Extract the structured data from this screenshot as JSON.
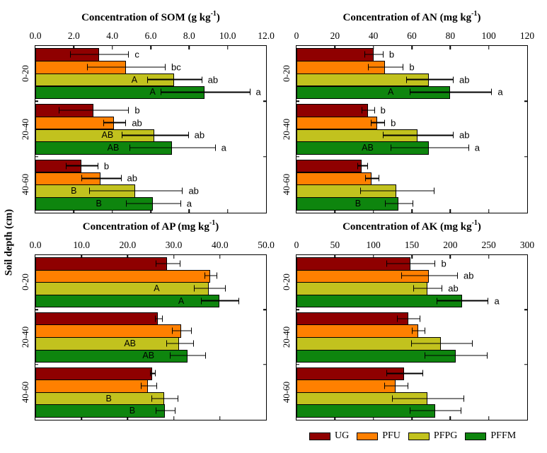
{
  "figure": {
    "shared_y_axis_label": "Soil depth (cm)",
    "depth_groups": [
      "0-20",
      "20-40",
      "40-60"
    ],
    "series": [
      "UG",
      "PFU",
      "PFPG",
      "PFFM"
    ],
    "colors": {
      "UG": "#8f0000",
      "PFU": "#ff8000",
      "PFPG": "#c2c21e",
      "PFFM": "#0e850e"
    }
  },
  "legend": {
    "items": [
      {
        "label": "UG",
        "color": "#8f0000"
      },
      {
        "label": "PFU",
        "color": "#ff8000"
      },
      {
        "label": "PFPG",
        "color": "#c2c21e"
      },
      {
        "label": "PFFM",
        "color": "#0e850e"
      }
    ]
  },
  "chart_data": [
    {
      "id": "som",
      "type": "bar",
      "orientation": "horizontal",
      "title": {
        "pre": "Concentration of SOM (g kg",
        "sup": "-1",
        "post": ")"
      },
      "x_ticks": [
        "0.0",
        "2.0",
        "4.0",
        "6.0",
        "8.0",
        "10.0",
        "12.0"
      ],
      "xmax": 12,
      "groups": [
        {
          "depth": "0-20",
          "bars": [
            {
              "series": "UG",
              "value": 3.3,
              "err": 1.5,
              "sig": "c"
            },
            {
              "series": "PFU",
              "value": 4.7,
              "err": 2.0,
              "sig": "bc"
            },
            {
              "series": "PFPG",
              "value": 7.2,
              "err": 1.4,
              "sig": "ab",
              "inside": "A",
              "inside_x": 5.15
            },
            {
              "series": "PFFM",
              "value": 8.8,
              "err": 2.3,
              "sig": "a",
              "inside": "A",
              "inside_x": 6.1
            }
          ]
        },
        {
          "depth": "20-40",
          "bars": [
            {
              "series": "UG",
              "value": 3.0,
              "err": 1.8,
              "sig": "b"
            },
            {
              "series": "PFU",
              "value": 4.1,
              "err": 0.55,
              "sig": "ab"
            },
            {
              "series": "PFPG",
              "value": 6.2,
              "err": 1.7,
              "sig": "ab",
              "inside": "AB",
              "inside_x": 3.75
            },
            {
              "series": "PFFM",
              "value": 7.1,
              "err": 2.2,
              "sig": "a",
              "inside": "AB",
              "inside_x": 4.05
            }
          ]
        },
        {
          "depth": "40-60",
          "bars": [
            {
              "series": "UG",
              "value": 2.4,
              "err": 0.8,
              "sig": "b"
            },
            {
              "series": "PFU",
              "value": 3.4,
              "err": 1.0,
              "sig": "ab"
            },
            {
              "series": "PFPG",
              "value": 5.2,
              "err": 2.4,
              "sig": "ab",
              "inside": "B",
              "inside_x": 2.0
            },
            {
              "series": "PFFM",
              "value": 6.1,
              "err": 1.4,
              "sig": "a",
              "inside": "B",
              "inside_x": 3.3
            }
          ]
        }
      ]
    },
    {
      "id": "an",
      "type": "bar",
      "orientation": "horizontal",
      "title": {
        "pre": "Concentration of AN (mg kg",
        "sup": "-1",
        "post": ")"
      },
      "x_ticks": [
        "0",
        "20",
        "40",
        "60",
        "80",
        "100",
        "120"
      ],
      "xmax": 120,
      "groups": [
        {
          "depth": "0-20",
          "bars": [
            {
              "series": "UG",
              "value": 40,
              "err": 4.5,
              "sig": "b"
            },
            {
              "series": "PFU",
              "value": 46,
              "err": 9,
              "sig": "b"
            },
            {
              "series": "PFPG",
              "value": 69,
              "err": 12,
              "sig": "ab"
            },
            {
              "series": "PFFM",
              "value": 80,
              "err": 21,
              "sig": "a",
              "inside": "A",
              "inside_x": 49
            }
          ]
        },
        {
          "depth": "20-40",
          "bars": [
            {
              "series": "UG",
              "value": 37,
              "err": 3,
              "sig": "b"
            },
            {
              "series": "PFU",
              "value": 42,
              "err": 3.3,
              "sig": "b"
            },
            {
              "series": "PFPG",
              "value": 63,
              "err": 18,
              "sig": "ab"
            },
            {
              "series": "PFFM",
              "value": 69,
              "err": 20,
              "sig": "a",
              "inside": "AB",
              "inside_x": 37
            }
          ]
        },
        {
          "depth": "40-60",
          "bars": [
            {
              "series": "UG",
              "value": 34,
              "err": 2.5,
              "sig": ""
            },
            {
              "series": "PFU",
              "value": 39,
              "err": 3.3,
              "sig": ""
            },
            {
              "series": "PFPG",
              "value": 52,
              "err": 19,
              "sig": ""
            },
            {
              "series": "PFFM",
              "value": 53,
              "err": 7,
              "sig": "",
              "inside": "B",
              "inside_x": 32
            }
          ]
        }
      ]
    },
    {
      "id": "ap",
      "type": "bar",
      "orientation": "horizontal",
      "title": {
        "pre": "Concentration of AP (mg kg",
        "sup": "-1",
        "post": ")"
      },
      "x_ticks": [
        "0.0",
        "10.0",
        "20.0",
        "30.0",
        "40.0",
        "50.0"
      ],
      "xmax": 50,
      "groups": [
        {
          "depth": "0-20",
          "bars": [
            {
              "series": "UG",
              "value": 28.6,
              "err": 2.6,
              "sig": ""
            },
            {
              "series": "PFU",
              "value": 37.9,
              "err": 1.2,
              "sig": ""
            },
            {
              "series": "PFPG",
              "value": 37.6,
              "err": 3.3,
              "sig": "",
              "inside": "A",
              "inside_x": 26.3
            },
            {
              "series": "PFFM",
              "value": 39.9,
              "err": 4.0,
              "sig": "",
              "inside": "A",
              "inside_x": 31.6
            }
          ]
        },
        {
          "depth": "20-40",
          "bars": [
            {
              "series": "UG",
              "value": 26.6,
              "err": 0.7,
              "sig": ""
            },
            {
              "series": "PFU",
              "value": 31.6,
              "err": 2.0,
              "sig": ""
            },
            {
              "series": "PFPG",
              "value": 31.2,
              "err": 2.8,
              "sig": "",
              "inside": "AB",
              "inside_x": 20.5
            },
            {
              "series": "PFFM",
              "value": 32.9,
              "err": 3.7,
              "sig": "",
              "inside": "AB",
              "inside_x": 24.5
            }
          ]
        },
        {
          "depth": "40-60",
          "bars": [
            {
              "series": "UG",
              "value": 25.3,
              "err": 0.4,
              "sig": ""
            },
            {
              "series": "PFU",
              "value": 24.4,
              "err": 1.6,
              "sig": ""
            },
            {
              "series": "PFPG",
              "value": 27.9,
              "err": 2.8,
              "sig": "",
              "inside": "B",
              "inside_x": 15.9
            },
            {
              "series": "PFFM",
              "value": 28.0,
              "err": 2.0,
              "sig": "",
              "inside": "B",
              "inside_x": 21.0
            }
          ]
        }
      ]
    },
    {
      "id": "ak",
      "type": "bar",
      "orientation": "horizontal",
      "title": {
        "pre": "Concentration of AK (mg kg",
        "sup": "-1",
        "post": ")"
      },
      "x_ticks": [
        "0",
        "50",
        "100",
        "150",
        "200",
        "250",
        "300"
      ],
      "xmax": 300,
      "groups": [
        {
          "depth": "0-20",
          "bars": [
            {
              "series": "UG",
              "value": 148,
              "err": 31,
              "sig": "b"
            },
            {
              "series": "PFU",
              "value": 172,
              "err": 36,
              "sig": "ab"
            },
            {
              "series": "PFPG",
              "value": 170,
              "err": 18,
              "sig": "ab"
            },
            {
              "series": "PFFM",
              "value": 215,
              "err": 33,
              "sig": "a"
            }
          ]
        },
        {
          "depth": "20-40",
          "bars": [
            {
              "series": "UG",
              "value": 145,
              "err": 14,
              "sig": ""
            },
            {
              "series": "PFU",
              "value": 158,
              "err": 8,
              "sig": ""
            },
            {
              "series": "PFPG",
              "value": 188,
              "err": 39,
              "sig": ""
            },
            {
              "series": "PFFM",
              "value": 207,
              "err": 40,
              "sig": ""
            }
          ]
        },
        {
          "depth": "40-60",
          "bars": [
            {
              "series": "UG",
              "value": 140,
              "err": 23,
              "sig": ""
            },
            {
              "series": "PFU",
              "value": 129,
              "err": 15,
              "sig": ""
            },
            {
              "series": "PFPG",
              "value": 170,
              "err": 46,
              "sig": ""
            },
            {
              "series": "PFFM",
              "value": 180,
              "err": 33,
              "sig": ""
            }
          ]
        }
      ]
    }
  ]
}
